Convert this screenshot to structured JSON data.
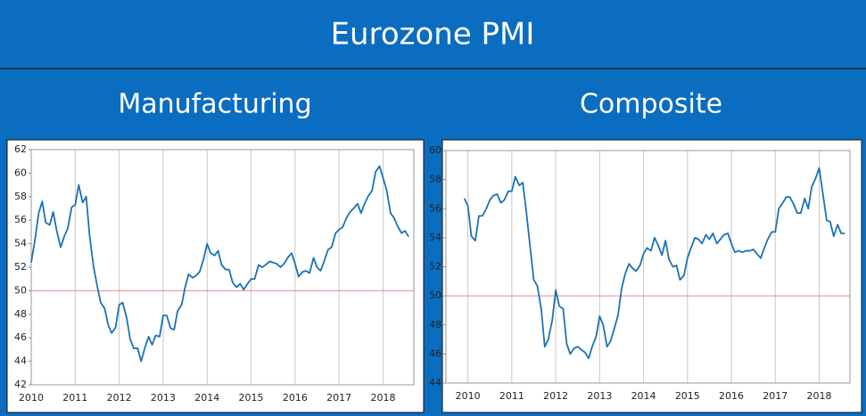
{
  "title": "Eurozone PMI",
  "chart_data": [
    {
      "type": "line",
      "title": "Manufacturing",
      "x": [
        2010.0,
        2010.08,
        2010.17,
        2010.25,
        2010.33,
        2010.42,
        2010.5,
        2010.58,
        2010.67,
        2010.75,
        2010.83,
        2010.92,
        2011.0,
        2011.08,
        2011.17,
        2011.25,
        2011.33,
        2011.42,
        2011.5,
        2011.58,
        2011.67,
        2011.75,
        2011.83,
        2011.92,
        2012.0,
        2012.08,
        2012.17,
        2012.25,
        2012.33,
        2012.42,
        2012.5,
        2012.58,
        2012.67,
        2012.75,
        2012.83,
        2012.92,
        2013.0,
        2013.08,
        2013.17,
        2013.25,
        2013.33,
        2013.42,
        2013.5,
        2013.58,
        2013.67,
        2013.75,
        2013.83,
        2013.92,
        2014.0,
        2014.08,
        2014.17,
        2014.25,
        2014.33,
        2014.42,
        2014.5,
        2014.58,
        2014.67,
        2014.75,
        2014.83,
        2014.92,
        2015.0,
        2015.08,
        2015.17,
        2015.25,
        2015.33,
        2015.42,
        2015.5,
        2015.58,
        2015.67,
        2015.75,
        2015.83,
        2015.92,
        2016.0,
        2016.08,
        2016.17,
        2016.25,
        2016.33,
        2016.42,
        2016.5,
        2016.58,
        2016.67,
        2016.75,
        2016.83,
        2016.92,
        2017.0,
        2017.08,
        2017.17,
        2017.25,
        2017.33,
        2017.42,
        2017.5,
        2017.58,
        2017.67,
        2017.75,
        2017.83,
        2017.92,
        2018.0,
        2018.08,
        2018.17,
        2018.25,
        2018.33,
        2018.42,
        2018.5,
        2018.58
      ],
      "series": [
        {
          "color": "#1b72b5",
          "values": [
            52.4,
            54.2,
            56.6,
            57.6,
            55.8,
            55.6,
            56.7,
            55.1,
            53.7,
            54.6,
            55.3,
            57.1,
            57.3,
            59.0,
            57.5,
            58.0,
            54.6,
            52.0,
            50.4,
            49.0,
            48.5,
            47.1,
            46.4,
            46.9,
            48.8,
            49.0,
            47.7,
            45.9,
            45.1,
            45.1,
            44.0,
            45.1,
            46.1,
            45.4,
            46.2,
            46.1,
            47.9,
            47.9,
            46.8,
            46.7,
            48.3,
            48.8,
            50.3,
            51.4,
            51.1,
            51.3,
            51.6,
            52.7,
            54.0,
            53.2,
            53.0,
            53.4,
            52.2,
            51.8,
            51.8,
            50.7,
            50.3,
            50.6,
            50.1,
            50.6,
            51.0,
            51.0,
            52.2,
            52.0,
            52.2,
            52.5,
            52.4,
            52.3,
            52.0,
            52.3,
            52.8,
            53.2,
            52.3,
            51.2,
            51.6,
            51.7,
            51.5,
            52.8,
            52.0,
            51.7,
            52.6,
            53.5,
            53.7,
            54.9,
            55.2,
            55.4,
            56.2,
            56.7,
            57.0,
            57.4,
            56.6,
            57.4,
            58.1,
            58.5,
            60.1,
            60.6,
            59.6,
            58.6,
            56.6,
            56.2,
            55.5,
            54.9,
            55.1,
            54.6
          ]
        }
      ],
      "xlim": [
        2010,
        2018.7
      ],
      "xticks": [
        2010,
        2011,
        2012,
        2013,
        2014,
        2015,
        2016,
        2017,
        2018
      ],
      "ylim": [
        42,
        62
      ],
      "yticks": [
        42,
        44,
        46,
        48,
        50,
        52,
        54,
        56,
        58,
        60,
        62
      ],
      "reference_line": 50,
      "reference_color": "#e58a8a",
      "grid": "x"
    },
    {
      "type": "line",
      "title": "Composite",
      "x": [
        2009.92,
        2010.0,
        2010.08,
        2010.17,
        2010.25,
        2010.33,
        2010.42,
        2010.5,
        2010.58,
        2010.67,
        2010.75,
        2010.83,
        2010.92,
        2011.0,
        2011.08,
        2011.17,
        2011.25,
        2011.33,
        2011.42,
        2011.5,
        2011.58,
        2011.67,
        2011.75,
        2011.83,
        2011.92,
        2012.0,
        2012.08,
        2012.17,
        2012.25,
        2012.33,
        2012.42,
        2012.5,
        2012.58,
        2012.67,
        2012.75,
        2012.83,
        2012.92,
        2013.0,
        2013.08,
        2013.17,
        2013.25,
        2013.33,
        2013.42,
        2013.5,
        2013.58,
        2013.67,
        2013.75,
        2013.83,
        2013.92,
        2014.0,
        2014.08,
        2014.17,
        2014.25,
        2014.33,
        2014.42,
        2014.5,
        2014.58,
        2014.67,
        2014.75,
        2014.83,
        2014.92,
        2015.0,
        2015.08,
        2015.17,
        2015.25,
        2015.33,
        2015.42,
        2015.5,
        2015.58,
        2015.67,
        2015.75,
        2015.83,
        2015.92,
        2016.0,
        2016.08,
        2016.17,
        2016.25,
        2016.33,
        2016.42,
        2016.5,
        2016.58,
        2016.67,
        2016.75,
        2016.83,
        2016.92,
        2017.0,
        2017.08,
        2017.17,
        2017.25,
        2017.33,
        2017.42,
        2017.5,
        2017.58,
        2017.67,
        2017.75,
        2017.83,
        2017.92,
        2018.0,
        2018.08,
        2018.17,
        2018.25,
        2018.33,
        2018.42,
        2018.5,
        2018.58
      ],
      "series": [
        {
          "color": "#1b72b5",
          "values": [
            56.7,
            56.2,
            54.1,
            53.8,
            55.5,
            55.5,
            56.0,
            56.6,
            56.9,
            57.0,
            56.4,
            56.6,
            57.2,
            57.2,
            58.2,
            57.6,
            57.8,
            55.8,
            53.3,
            51.1,
            50.7,
            49.1,
            46.5,
            47.0,
            48.3,
            50.4,
            49.3,
            49.1,
            46.7,
            46.0,
            46.4,
            46.5,
            46.3,
            46.1,
            45.7,
            46.5,
            47.2,
            48.6,
            48.0,
            46.5,
            46.9,
            47.7,
            48.7,
            50.5,
            51.5,
            52.2,
            51.9,
            51.7,
            52.1,
            52.9,
            53.3,
            53.1,
            54.0,
            53.5,
            52.8,
            53.8,
            52.5,
            52.0,
            52.1,
            51.1,
            51.4,
            52.6,
            53.3,
            54.0,
            53.9,
            53.6,
            54.2,
            53.9,
            54.3,
            53.6,
            53.9,
            54.2,
            54.3,
            53.6,
            53.0,
            53.1,
            53.0,
            53.1,
            53.1,
            53.2,
            52.9,
            52.6,
            53.3,
            53.9,
            54.4,
            54.4,
            56.0,
            56.4,
            56.8,
            56.8,
            56.3,
            55.7,
            55.7,
            56.7,
            56.0,
            57.5,
            58.1,
            58.8,
            57.1,
            55.2,
            55.1,
            54.1,
            54.9,
            54.3,
            54.3
          ]
        }
      ],
      "xlim": [
        2009.5,
        2018.7
      ],
      "xticks": [
        2010,
        2011,
        2012,
        2013,
        2014,
        2015,
        2016,
        2017,
        2018
      ],
      "ylim": [
        44,
        60
      ],
      "yticks": [
        44,
        46,
        48,
        50,
        52,
        54,
        56,
        58,
        60
      ],
      "reference_line": 50,
      "reference_color": "#e58a8a",
      "grid": "x"
    }
  ]
}
